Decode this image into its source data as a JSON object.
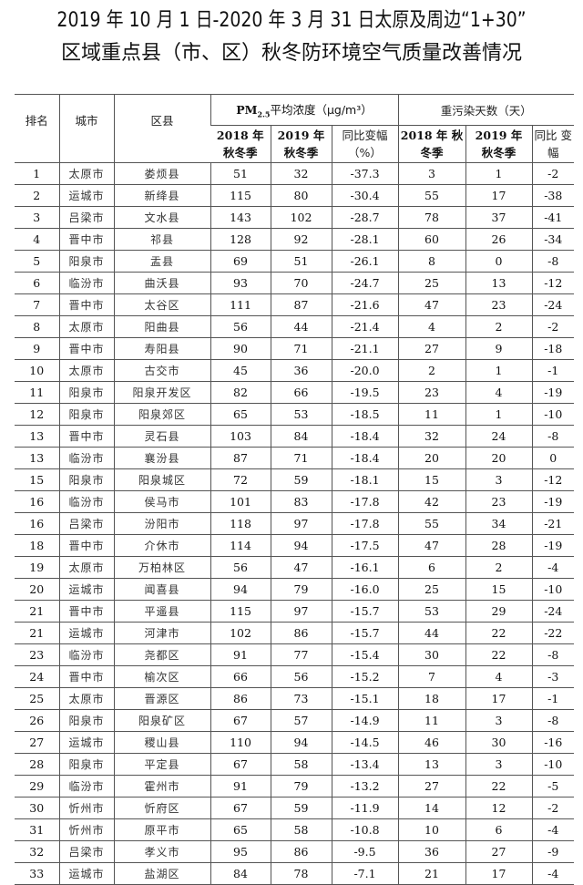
{
  "title": {
    "line1": "2019 年 10 月 1 日-2020 年 3 月 31 日太原及周边“1+30”",
    "line2": "区域重点县（市、区）秋冬防环境空气质量改善情况"
  },
  "table": {
    "headers": {
      "rank": "排名",
      "city": "城市",
      "county": "区县",
      "pm_group_prefix": "PM",
      "pm_group_sub": "2.5",
      "pm_group_suffix": "平均浓度（μg/m³）",
      "pollution_group": "重污染天数（天）",
      "pm_2018": "2018 年 秋冬季",
      "pm_2019": "2019 年 秋冬季",
      "pm_change": "同比变幅 （%）",
      "days_2018": "2018 年 秋冬季",
      "days_2019": "2019 年 秋冬季",
      "days_change": "同比 变幅"
    },
    "rows": [
      [
        "1",
        "太原市",
        "娄烦县",
        "51",
        "32",
        "-37.3",
        "3",
        "1",
        "-2"
      ],
      [
        "2",
        "运城市",
        "新绛县",
        "115",
        "80",
        "-30.4",
        "55",
        "17",
        "-38"
      ],
      [
        "3",
        "吕梁市",
        "文水县",
        "143",
        "102",
        "-28.7",
        "78",
        "37",
        "-41"
      ],
      [
        "4",
        "晋中市",
        "祁县",
        "128",
        "92",
        "-28.1",
        "60",
        "26",
        "-34"
      ],
      [
        "5",
        "阳泉市",
        "盂县",
        "69",
        "51",
        "-26.1",
        "8",
        "0",
        "-8"
      ],
      [
        "6",
        "临汾市",
        "曲沃县",
        "93",
        "70",
        "-24.7",
        "25",
        "13",
        "-12"
      ],
      [
        "7",
        "晋中市",
        "太谷区",
        "111",
        "87",
        "-21.6",
        "47",
        "23",
        "-24"
      ],
      [
        "8",
        "太原市",
        "阳曲县",
        "56",
        "44",
        "-21.4",
        "4",
        "2",
        "-2"
      ],
      [
        "9",
        "晋中市",
        "寿阳县",
        "90",
        "71",
        "-21.1",
        "27",
        "9",
        "-18"
      ],
      [
        "10",
        "太原市",
        "古交市",
        "45",
        "36",
        "-20.0",
        "2",
        "1",
        "-1"
      ],
      [
        "11",
        "阳泉市",
        "阳泉开发区",
        "82",
        "66",
        "-19.5",
        "23",
        "4",
        "-19"
      ],
      [
        "12",
        "阳泉市",
        "阳泉郊区",
        "65",
        "53",
        "-18.5",
        "11",
        "1",
        "-10"
      ],
      [
        "13",
        "晋中市",
        "灵石县",
        "103",
        "84",
        "-18.4",
        "32",
        "24",
        "-8"
      ],
      [
        "13",
        "临汾市",
        "襄汾县",
        "87",
        "71",
        "-18.4",
        "20",
        "20",
        "0"
      ],
      [
        "15",
        "阳泉市",
        "阳泉城区",
        "72",
        "59",
        "-18.1",
        "15",
        "3",
        "-12"
      ],
      [
        "16",
        "临汾市",
        "侯马市",
        "101",
        "83",
        "-17.8",
        "42",
        "23",
        "-19"
      ],
      [
        "16",
        "吕梁市",
        "汾阳市",
        "118",
        "97",
        "-17.8",
        "55",
        "34",
        "-21"
      ],
      [
        "18",
        "晋中市",
        "介休市",
        "114",
        "94",
        "-17.5",
        "47",
        "28",
        "-19"
      ],
      [
        "19",
        "太原市",
        "万柏林区",
        "56",
        "47",
        "-16.1",
        "6",
        "2",
        "-4"
      ],
      [
        "20",
        "运城市",
        "闻喜县",
        "94",
        "79",
        "-16.0",
        "25",
        "15",
        "-10"
      ],
      [
        "21",
        "晋中市",
        "平遥县",
        "115",
        "97",
        "-15.7",
        "53",
        "29",
        "-24"
      ],
      [
        "21",
        "运城市",
        "河津市",
        "102",
        "86",
        "-15.7",
        "44",
        "22",
        "-22"
      ],
      [
        "23",
        "临汾市",
        "尧都区",
        "91",
        "77",
        "-15.4",
        "30",
        "22",
        "-8"
      ],
      [
        "24",
        "晋中市",
        "榆次区",
        "66",
        "56",
        "-15.2",
        "7",
        "4",
        "-3"
      ],
      [
        "25",
        "太原市",
        "晋源区",
        "86",
        "73",
        "-15.1",
        "18",
        "17",
        "-1"
      ],
      [
        "26",
        "阳泉市",
        "阳泉矿区",
        "67",
        "57",
        "-14.9",
        "11",
        "3",
        "-8"
      ],
      [
        "27",
        "运城市",
        "稷山县",
        "110",
        "94",
        "-14.5",
        "46",
        "30",
        "-16"
      ],
      [
        "28",
        "阳泉市",
        "平定县",
        "67",
        "58",
        "-13.4",
        "13",
        "3",
        "-10"
      ],
      [
        "29",
        "临汾市",
        "霍州市",
        "91",
        "79",
        "-13.2",
        "27",
        "22",
        "-5"
      ],
      [
        "30",
        "忻州市",
        "忻府区",
        "67",
        "59",
        "-11.9",
        "14",
        "12",
        "-2"
      ],
      [
        "31",
        "忻州市",
        "原平市",
        "65",
        "58",
        "-10.8",
        "10",
        "6",
        "-4"
      ],
      [
        "32",
        "吕梁市",
        "孝义市",
        "95",
        "86",
        "-9.5",
        "36",
        "27",
        "-9"
      ],
      [
        "33",
        "运城市",
        "盐湖区",
        "84",
        "78",
        "-7.1",
        "21",
        "17",
        "-4"
      ]
    ]
  }
}
